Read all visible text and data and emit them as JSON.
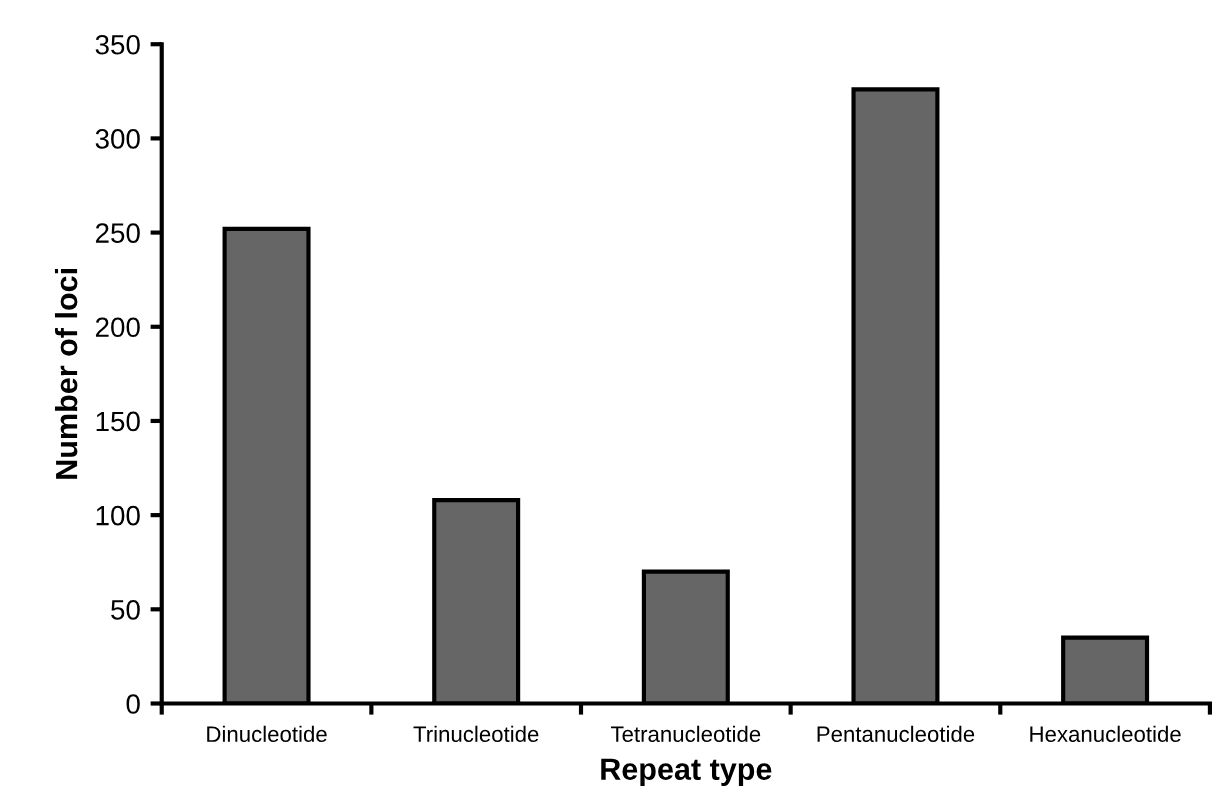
{
  "chart_data": {
    "type": "bar",
    "xlabel": "Repeat type",
    "ylabel": "Number of loci",
    "categories": [
      "Dinucleotide",
      "Trinucleotide",
      "Tetranucleotide",
      "Pentanucleotide",
      "Hexanucleotide"
    ],
    "values": [
      252,
      108,
      70,
      326,
      35
    ],
    "color": "#666666",
    "ylim": [
      0,
      350
    ],
    "yticks": [
      0,
      50,
      100,
      150,
      200,
      250,
      300,
      350
    ],
    "grid": false
  }
}
